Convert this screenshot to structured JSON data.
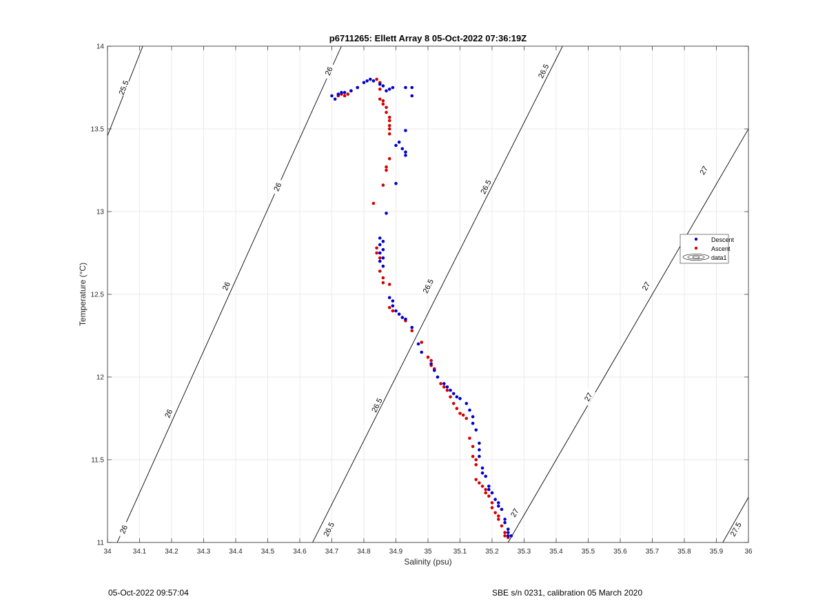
{
  "chart_data": {
    "type": "scatter",
    "title": "p6711265: Ellett Array 8 05-Oct-2022 07:36:19Z",
    "xlabel": "Salinity (psu)",
    "ylabel": "Temperature (°C)",
    "xlim": [
      34,
      36
    ],
    "ylim": [
      11,
      14
    ],
    "xticks": [
      "34",
      "34.1",
      "34.2",
      "34.3",
      "34.4",
      "34.5",
      "34.6",
      "34.7",
      "34.8",
      "34.9",
      "35",
      "35.1",
      "35.2",
      "35.3",
      "35.4",
      "35.5",
      "35.6",
      "35.7",
      "35.8",
      "35.9",
      "36"
    ],
    "yticks": [
      "11",
      "11.5",
      "12",
      "12.5",
      "13",
      "13.5",
      "14"
    ],
    "grid": true,
    "legend_placement": "right-middle",
    "legend": [
      "Descent",
      "Ascent",
      "data1"
    ],
    "colors": {
      "descent": "#0000cc",
      "ascent": "#d40000",
      "contour": "#000000"
    },
    "contours": [
      {
        "level": "25.5",
        "s11": 33.5,
        "s14": 34.11,
        "labels": [
          [
            34.05,
            13.75
          ]
        ]
      },
      {
        "level": "26",
        "s11": 34.03,
        "s14": 34.73,
        "labels": [
          [
            34.05,
            11.08
          ],
          [
            34.19,
            11.78
          ],
          [
            34.37,
            12.55
          ],
          [
            34.53,
            13.15
          ],
          [
            34.69,
            13.85
          ]
        ]
      },
      {
        "level": "26.5",
        "s11": 34.64,
        "s14": 35.42,
        "labels": [
          [
            34.69,
            11.08
          ],
          [
            34.84,
            11.83
          ],
          [
            35.0,
            12.55
          ],
          [
            35.18,
            13.15
          ],
          [
            35.36,
            13.85
          ]
        ]
      },
      {
        "level": "27",
        "s11": 35.25,
        "s14": 36.15,
        "labels": [
          [
            35.27,
            11.18
          ],
          [
            35.5,
            11.88
          ],
          [
            35.68,
            12.55
          ],
          [
            35.86,
            13.25
          ]
        ]
      },
      {
        "level": "27.5",
        "s11": 35.92,
        "s14": 36.8,
        "labels": [
          [
            35.96,
            11.08
          ]
        ]
      }
    ],
    "series": [
      {
        "name": "Descent",
        "points": [
          [
            34.7,
            13.7
          ],
          [
            34.71,
            13.68
          ],
          [
            34.72,
            13.71
          ],
          [
            34.73,
            13.72
          ],
          [
            34.74,
            13.72
          ],
          [
            34.76,
            13.73
          ],
          [
            34.78,
            13.75
          ],
          [
            34.8,
            13.78
          ],
          [
            34.81,
            13.79
          ],
          [
            34.82,
            13.8
          ],
          [
            34.83,
            13.79
          ],
          [
            34.85,
            13.77
          ],
          [
            34.86,
            13.76
          ],
          [
            34.87,
            13.73
          ],
          [
            34.88,
            13.74
          ],
          [
            34.89,
            13.75
          ],
          [
            34.93,
            13.75
          ],
          [
            34.95,
            13.75
          ],
          [
            34.95,
            13.7
          ],
          [
            34.93,
            13.49
          ],
          [
            34.91,
            13.42
          ],
          [
            34.92,
            13.38
          ],
          [
            34.93,
            13.36
          ],
          [
            34.93,
            13.34
          ],
          [
            34.9,
            13.4
          ],
          [
            34.9,
            13.17
          ],
          [
            34.87,
            12.99
          ],
          [
            34.85,
            12.84
          ],
          [
            34.86,
            12.82
          ],
          [
            34.85,
            12.8
          ],
          [
            34.86,
            12.77
          ],
          [
            34.85,
            12.75
          ],
          [
            34.86,
            12.72
          ],
          [
            34.85,
            12.7
          ],
          [
            34.86,
            12.67
          ],
          [
            34.88,
            12.48
          ],
          [
            34.89,
            12.46
          ],
          [
            34.89,
            12.43
          ],
          [
            34.9,
            12.4
          ],
          [
            34.91,
            12.38
          ],
          [
            34.92,
            12.36
          ],
          [
            34.93,
            12.35
          ],
          [
            34.95,
            12.3
          ],
          [
            34.97,
            12.2
          ],
          [
            34.98,
            12.15
          ],
          [
            35.01,
            12.08
          ],
          [
            35.02,
            12.04
          ],
          [
            35.03,
            12.0
          ],
          [
            35.05,
            11.96
          ],
          [
            35.06,
            11.94
          ],
          [
            35.07,
            11.92
          ],
          [
            35.08,
            11.9
          ],
          [
            35.09,
            11.88
          ],
          [
            35.1,
            11.87
          ],
          [
            35.12,
            11.84
          ],
          [
            35.13,
            11.8
          ],
          [
            35.14,
            11.76
          ],
          [
            35.14,
            11.72
          ],
          [
            35.15,
            11.68
          ],
          [
            35.16,
            11.6
          ],
          [
            35.16,
            11.56
          ],
          [
            35.16,
            11.52
          ],
          [
            35.17,
            11.45
          ],
          [
            35.17,
            11.42
          ],
          [
            35.18,
            11.4
          ],
          [
            35.19,
            11.34
          ],
          [
            35.19,
            11.32
          ],
          [
            35.2,
            11.3
          ],
          [
            35.21,
            11.26
          ],
          [
            35.22,
            11.24
          ],
          [
            35.22,
            11.22
          ],
          [
            35.23,
            11.2
          ],
          [
            35.24,
            11.14
          ],
          [
            35.24,
            11.12
          ],
          [
            35.25,
            11.08
          ],
          [
            35.25,
            11.06
          ],
          [
            35.25,
            11.04
          ],
          [
            35.26,
            11.04
          ]
        ]
      },
      {
        "name": "Ascent",
        "points": [
          [
            34.72,
            13.7
          ],
          [
            34.73,
            13.71
          ],
          [
            34.74,
            13.7
          ],
          [
            34.75,
            13.71
          ],
          [
            34.76,
            13.73
          ],
          [
            34.78,
            13.75
          ],
          [
            34.84,
            13.8
          ],
          [
            34.85,
            13.78
          ],
          [
            34.85,
            13.74
          ],
          [
            34.85,
            13.68
          ],
          [
            34.86,
            13.67
          ],
          [
            34.86,
            13.65
          ],
          [
            34.87,
            13.63
          ],
          [
            34.87,
            13.6
          ],
          [
            34.88,
            13.57
          ],
          [
            34.88,
            13.55
          ],
          [
            34.88,
            13.52
          ],
          [
            34.88,
            13.5
          ],
          [
            34.88,
            13.47
          ],
          [
            34.88,
            13.32
          ],
          [
            34.87,
            13.27
          ],
          [
            34.87,
            13.25
          ],
          [
            34.86,
            13.16
          ],
          [
            34.83,
            13.05
          ],
          [
            34.84,
            12.78
          ],
          [
            34.84,
            12.75
          ],
          [
            34.85,
            12.72
          ],
          [
            34.85,
            12.64
          ],
          [
            34.86,
            12.6
          ],
          [
            34.86,
            12.57
          ],
          [
            34.88,
            12.56
          ],
          [
            34.88,
            12.42
          ],
          [
            34.89,
            12.4
          ],
          [
            34.93,
            12.34
          ],
          [
            34.95,
            12.28
          ],
          [
            34.98,
            12.21
          ],
          [
            35.0,
            12.12
          ],
          [
            35.01,
            12.1
          ],
          [
            35.01,
            12.07
          ],
          [
            35.02,
            12.05
          ],
          [
            35.04,
            11.96
          ],
          [
            35.05,
            11.94
          ],
          [
            35.06,
            11.92
          ],
          [
            35.07,
            11.88
          ],
          [
            35.08,
            11.84
          ],
          [
            35.09,
            11.81
          ],
          [
            35.1,
            11.78
          ],
          [
            35.11,
            11.77
          ],
          [
            35.12,
            11.75
          ],
          [
            35.13,
            11.63
          ],
          [
            35.14,
            11.58
          ],
          [
            35.14,
            11.52
          ],
          [
            35.15,
            11.5
          ],
          [
            35.15,
            11.47
          ],
          [
            35.15,
            11.38
          ],
          [
            35.16,
            11.36
          ],
          [
            35.17,
            11.34
          ],
          [
            35.18,
            11.32
          ],
          [
            35.18,
            11.3
          ],
          [
            35.19,
            11.28
          ],
          [
            35.2,
            11.24
          ],
          [
            35.2,
            11.21
          ],
          [
            35.21,
            11.18
          ],
          [
            35.22,
            11.16
          ],
          [
            35.22,
            11.14
          ],
          [
            35.23,
            11.1
          ],
          [
            35.24,
            11.06
          ],
          [
            35.24,
            11.04
          ],
          [
            35.25,
            11.03
          ]
        ]
      }
    ]
  },
  "footer": {
    "left": "05-Oct-2022 09:57:04",
    "right": "SBE s/n 0231, calibration 05 March 2020"
  }
}
